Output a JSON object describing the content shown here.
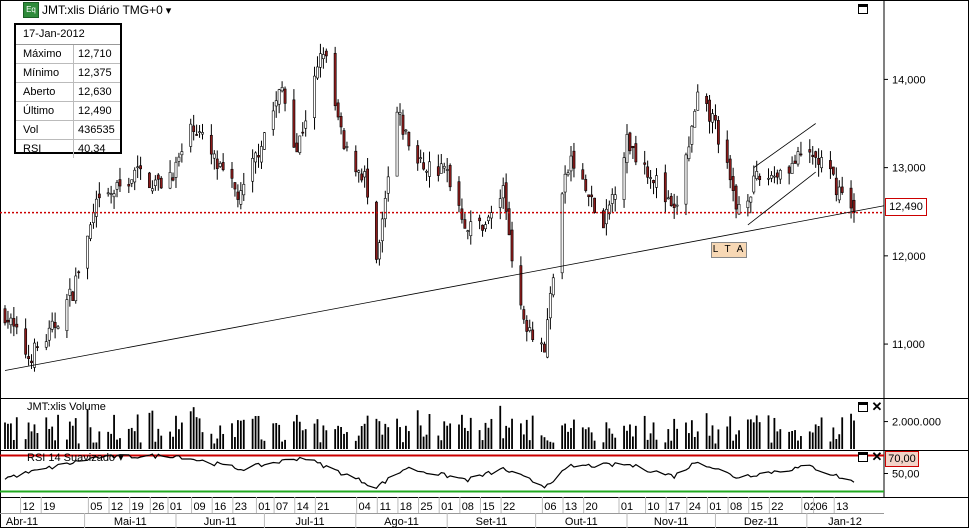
{
  "title": "JMT:xlis Diário TMG+0",
  "title_badge": "Eq",
  "dropdown_glyph": "▾",
  "info": {
    "date": "17-Jan-2012",
    "rows": [
      {
        "label": "Máximo",
        "value": "12,710"
      },
      {
        "label": "Mínimo",
        "value": "12,375"
      },
      {
        "label": "Aberto",
        "value": "12,630"
      },
      {
        "label": "Último",
        "value": "12,490"
      },
      {
        "label": "Vol",
        "value": "436535"
      },
      {
        "label": "RSI",
        "value": "40,34"
      }
    ]
  },
  "annotations": {
    "trendline_label": "L T A",
    "last_price": "12,490",
    "rsi_level": "70,00"
  },
  "volume_panel": {
    "title": "JMT:xlis Volume",
    "tick_label": "2.000.000"
  },
  "rsi_panel": {
    "title": "RSI 14 Suavizado",
    "tick_label": "50,00"
  },
  "colors": {
    "up_candle": "#ffffff",
    "down_candle": "#8b1a1a",
    "last_price_line": "#cc0000",
    "rsi_upper": "#cc0000",
    "rsi_lower": "#22aa22",
    "volume_bar": "#000000",
    "title_badge": "#2e8b3a"
  },
  "chart_data": [
    {
      "type": "candlestick",
      "title": "JMT:xlis Diário TMG+0",
      "y_ticks": [
        "11,000",
        "12,000",
        "13,000",
        "14,000"
      ],
      "y_tick_values": [
        11.0,
        12.0,
        13.0,
        14.0
      ],
      "ylim": [
        10.4,
        14.9
      ],
      "x_ticks": [
        "12",
        "19",
        "05",
        "12",
        "19",
        "26",
        "01",
        "09",
        "16",
        "23",
        "01",
        "07",
        "14",
        "21",
        "04",
        "11",
        "18",
        "25",
        "01",
        "08",
        "15",
        "22",
        "06",
        "13",
        "20",
        "01",
        "10",
        "17",
        "24",
        "01",
        "08",
        "15",
        "22",
        "02",
        "06",
        "13"
      ],
      "x_tick_dates": [
        "2011-04-12",
        "2011-04-19",
        "2011-05-05",
        "2011-05-12",
        "2011-05-19",
        "2011-05-26",
        "2011-06-01",
        "2011-06-09",
        "2011-06-16",
        "2011-06-23",
        "2011-07-01",
        "2011-07-07",
        "2011-07-14",
        "2011-07-21",
        "2011-08-04",
        "2011-08-11",
        "2011-08-18",
        "2011-08-25",
        "2011-09-01",
        "2011-09-08",
        "2011-09-15",
        "2011-09-22",
        "2011-10-06",
        "2011-10-13",
        "2011-10-20",
        "2011-11-01",
        "2011-11-10",
        "2011-11-17",
        "2011-11-24",
        "2011-12-01",
        "2011-12-08",
        "2011-12-15",
        "2011-12-22",
        "2012-01-02",
        "2012-01-06",
        "2012-01-13"
      ],
      "month_labels": [
        "Abr-11",
        "Mai-11",
        "Jun-11",
        "Jul-11",
        "Ago-11",
        "Set-11",
        "Out-11",
        "Nov-11",
        "Dez-11",
        "Jan-12"
      ],
      "start_date": "2011-04-04",
      "end_date": "2012-01-17",
      "anchors": [
        {
          "date": "2011-04-04",
          "close": 11.35
        },
        {
          "date": "2011-04-12",
          "close": 10.85
        },
        {
          "date": "2011-04-19",
          "close": 11.1
        },
        {
          "date": "2011-04-27",
          "close": 11.6
        },
        {
          "date": "2011-05-05",
          "close": 12.55
        },
        {
          "date": "2011-05-12",
          "close": 12.75
        },
        {
          "date": "2011-05-19",
          "close": 12.95
        },
        {
          "date": "2011-05-26",
          "close": 12.8
        },
        {
          "date": "2011-06-01",
          "close": 13.0
        },
        {
          "date": "2011-06-07",
          "close": 13.5
        },
        {
          "date": "2011-06-16",
          "close": 12.95
        },
        {
          "date": "2011-06-23",
          "close": 12.65
        },
        {
          "date": "2011-07-01",
          "close": 13.4
        },
        {
          "date": "2011-07-07",
          "close": 13.9
        },
        {
          "date": "2011-07-12",
          "close": 13.2
        },
        {
          "date": "2011-07-21",
          "close": 14.35
        },
        {
          "date": "2011-07-28",
          "close": 13.2
        },
        {
          "date": "2011-08-04",
          "close": 12.9
        },
        {
          "date": "2011-08-08",
          "close": 11.85
        },
        {
          "date": "2011-08-15",
          "close": 13.6
        },
        {
          "date": "2011-08-22",
          "close": 13.05
        },
        {
          "date": "2011-09-01",
          "close": 12.95
        },
        {
          "date": "2011-09-08",
          "close": 12.3
        },
        {
          "date": "2011-09-15",
          "close": 12.4
        },
        {
          "date": "2011-09-20",
          "close": 12.75
        },
        {
          "date": "2011-09-26",
          "close": 11.35
        },
        {
          "date": "2011-10-04",
          "close": 10.95
        },
        {
          "date": "2011-10-10",
          "close": 12.7
        },
        {
          "date": "2011-10-13",
          "close": 13.1
        },
        {
          "date": "2011-10-24",
          "close": 12.3
        },
        {
          "date": "2011-11-01",
          "close": 13.3
        },
        {
          "date": "2011-11-10",
          "close": 12.9
        },
        {
          "date": "2011-11-17",
          "close": 12.45
        },
        {
          "date": "2011-11-25",
          "close": 13.75
        },
        {
          "date": "2011-12-01",
          "close": 13.5
        },
        {
          "date": "2011-12-08",
          "close": 12.55
        },
        {
          "date": "2011-12-15",
          "close": 12.85
        },
        {
          "date": "2011-12-22",
          "close": 12.95
        },
        {
          "date": "2012-01-02",
          "close": 13.15
        },
        {
          "date": "2012-01-06",
          "close": 13.05
        },
        {
          "date": "2012-01-13",
          "close": 12.7
        },
        {
          "date": "2012-01-17",
          "close": 12.49
        }
      ],
      "last_price": 12.49,
      "trendline_lta": {
        "start": {
          "date": "2011-04-04",
          "price": 10.7
        },
        "end": {
          "date": "2012-01-17",
          "price": 12.5
        }
      },
      "channel_upper": {
        "start": {
          "date": "2011-12-14",
          "price": 13.0
        },
        "end": {
          "date": "2012-01-04",
          "price": 13.5
        }
      },
      "channel_lower": {
        "start": {
          "date": "2011-12-12",
          "price": 12.35
        },
        "end": {
          "date": "2012-01-04",
          "price": 12.95
        }
      }
    },
    {
      "type": "bar",
      "title": "JMT:xlis Volume",
      "y_tick": 2000000,
      "ylim": [
        0,
        3500000
      ],
      "typical_range": [
        400000,
        2500000
      ]
    },
    {
      "type": "line",
      "title": "RSI 14 Suavizado",
      "levels": [
        70,
        30
      ],
      "tick": 50,
      "ylim": [
        25,
        75
      ],
      "last_value": 40.34,
      "anchors": [
        {
          "date": "2011-04-04",
          "value": 45
        },
        {
          "date": "2011-05-05",
          "value": 68
        },
        {
          "date": "2011-06-01",
          "value": 70
        },
        {
          "date": "2011-06-23",
          "value": 55
        },
        {
          "date": "2011-07-14",
          "value": 68
        },
        {
          "date": "2011-08-08",
          "value": 35
        },
        {
          "date": "2011-08-18",
          "value": 56
        },
        {
          "date": "2011-09-08",
          "value": 43
        },
        {
          "date": "2011-09-20",
          "value": 55
        },
        {
          "date": "2011-10-04",
          "value": 36
        },
        {
          "date": "2011-10-13",
          "value": 58
        },
        {
          "date": "2011-11-01",
          "value": 60
        },
        {
          "date": "2011-11-17",
          "value": 47
        },
        {
          "date": "2011-11-25",
          "value": 64
        },
        {
          "date": "2011-12-08",
          "value": 46
        },
        {
          "date": "2012-01-02",
          "value": 58
        },
        {
          "date": "2012-01-17",
          "value": 40.34
        }
      ]
    }
  ]
}
